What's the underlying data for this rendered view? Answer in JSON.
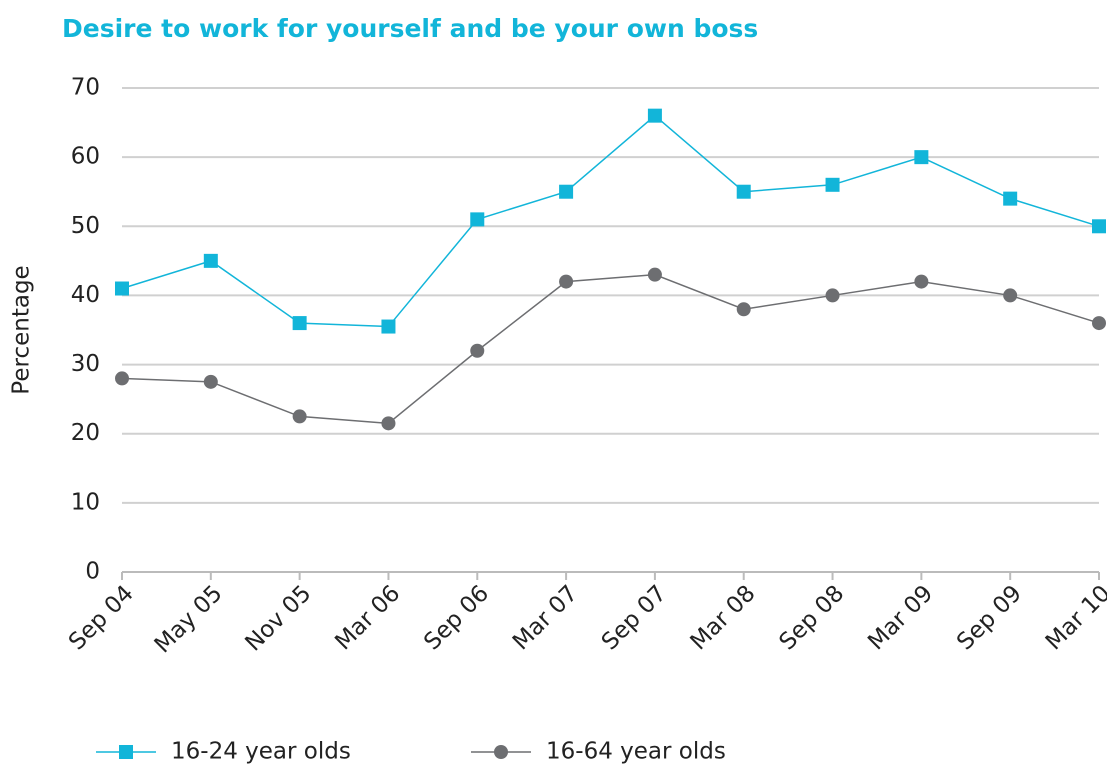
{
  "chart_data": {
    "type": "line",
    "title": "Desire to work for yourself and be your own boss",
    "y_label": "Percentage",
    "categories": [
      "Sep 04",
      "May 05",
      "Nov 05",
      "Mar 06",
      "Sep 06",
      "Mar 07",
      "Sep 07",
      "Mar 08",
      "Sep 08",
      "Mar 09",
      "Sep 09",
      "Mar 10"
    ],
    "series": [
      {
        "name": "16-24 year olds",
        "color": "#12b5d9",
        "marker": "square",
        "values": [
          41,
          45,
          36,
          35.5,
          51,
          55,
          66,
          55,
          56,
          60,
          54,
          50
        ]
      },
      {
        "name": "16-64 year olds",
        "color": "#6d6e71",
        "marker": "circle",
        "values": [
          28,
          27.5,
          22.5,
          21.5,
          32,
          42,
          43,
          38,
          40,
          42,
          40,
          36
        ]
      }
    ],
    "ylim": [
      0,
      70
    ],
    "yticks": [
      0,
      10,
      20,
      30,
      40,
      50,
      60,
      70
    ],
    "grid": true,
    "legend": "bottom"
  }
}
